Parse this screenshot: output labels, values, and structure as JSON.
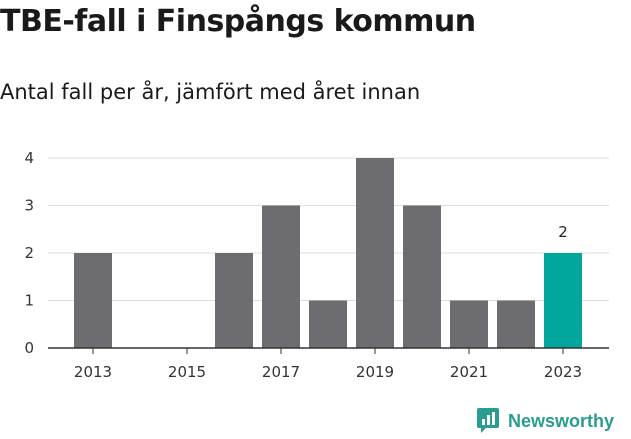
{
  "title": "TBE-fall i Finspångs kommun",
  "subtitle": "Antal fall per år, jämfört med året innan",
  "brand": {
    "name": "Newsworthy",
    "icon": "newsworthy-logo-icon"
  },
  "colors": {
    "bar": "#6d6c71",
    "highlight": "#00a69c",
    "grid": "#dddddd",
    "axis": "#333333"
  },
  "chart_data": {
    "type": "bar",
    "title": "TBE-fall i Finspångs kommun",
    "subtitle": "Antal fall per år, jämfört med året innan",
    "categories": [
      "2013",
      "2014",
      "2015",
      "2016",
      "2017",
      "2018",
      "2019",
      "2020",
      "2021",
      "2022",
      "2023"
    ],
    "values": [
      2,
      0,
      0,
      2,
      3,
      1,
      4,
      3,
      1,
      1,
      2
    ],
    "highlight_index": 10,
    "data_labels": [
      {
        "category": "2023",
        "text": "2"
      }
    ],
    "x_tick_labels": [
      "2013",
      "2015",
      "2017",
      "2019",
      "2021",
      "2023"
    ],
    "y_ticks": [
      0,
      1,
      2,
      3,
      4
    ],
    "ylim": [
      0,
      4
    ],
    "xlabel": "",
    "ylabel": "",
    "grid": true,
    "legend": "none"
  }
}
